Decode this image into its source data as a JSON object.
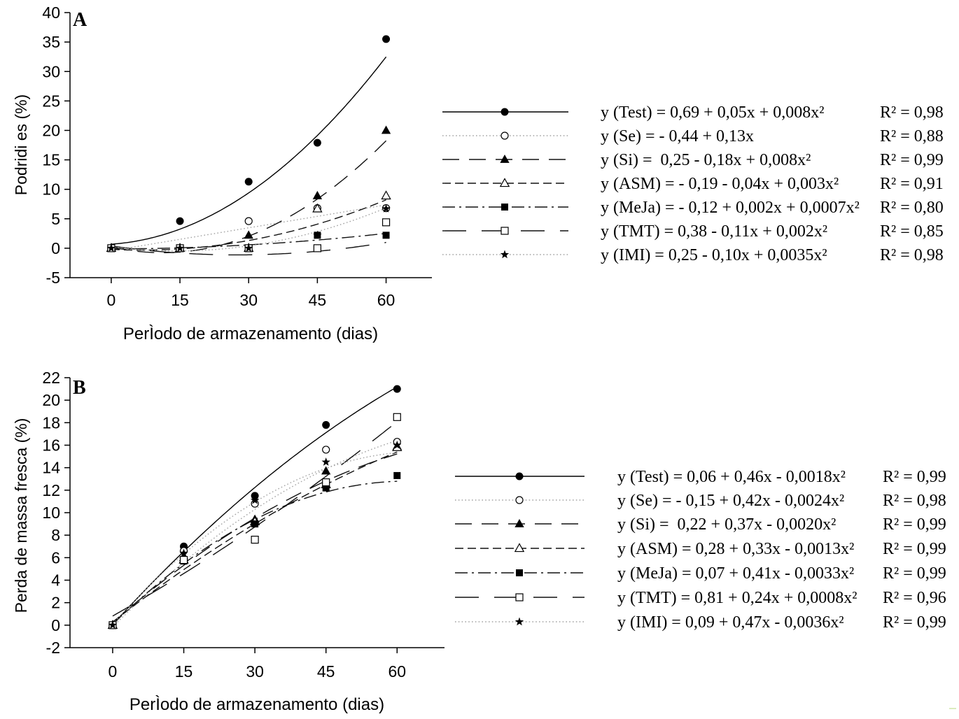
{
  "chart_data": [
    {
      "panel_label": "A",
      "type": "scatter",
      "xlabel": "PerÌodo de armazenamento (dias)",
      "ylabel": "Podridi es (%)",
      "x": [
        0,
        15,
        30,
        45,
        60
      ],
      "xticks": [
        0,
        15,
        30,
        45,
        60
      ],
      "yticks": [
        -5,
        0,
        5,
        10,
        15,
        20,
        25,
        30,
        35,
        40
      ],
      "xlim": [
        -9,
        70
      ],
      "ylim": [
        -5,
        40
      ],
      "grid": false,
      "legend_position": "right",
      "series": [
        {
          "marker": "filled-circle",
          "values": [
            0,
            4.6,
            11.3,
            17.9,
            35.5
          ],
          "coef": [
            0.69,
            0.05,
            0.008
          ],
          "equation": "y (Test) = 0,69 + 0,05x + 0,008x²",
          "r2": "R² = 0,98"
        },
        {
          "marker": "open-circle",
          "values": [
            0,
            0,
            4.6,
            6.8,
            6.8
          ],
          "coef": [
            -0.44,
            0.13,
            0
          ],
          "equation": "y (Se) = - 0,44 + 0,13x",
          "r2": "R² = 0,88"
        },
        {
          "marker": "filled-triangle",
          "values": [
            0,
            0,
            2.2,
            8.9,
            20.0
          ],
          "coef": [
            0.25,
            -0.18,
            0.008
          ],
          "equation": "y (Si) =  0,25 - 0,18x + 0,008x²",
          "r2": "R² = 0,99"
        },
        {
          "marker": "open-triangle",
          "values": [
            0,
            0,
            0,
            6.7,
            8.9
          ],
          "coef": [
            -0.19,
            -0.04,
            0.003
          ],
          "equation": "y (ASM) = - 0,19 - 0,04x + 0,003x²",
          "r2": "R² = 0,91"
        },
        {
          "marker": "filled-square",
          "values": [
            0,
            0,
            0,
            2.2,
            2.2
          ],
          "coef": [
            -0.12,
            0.002,
            0.0007
          ],
          "equation": "y (MeJa) = - 0,12 + 0,002x + 0,0007x²",
          "r2": "R² = 0,80"
        },
        {
          "marker": "open-square",
          "values": [
            0,
            0,
            0,
            0,
            4.4
          ],
          "coef": [
            0.38,
            -0.11,
            0.002
          ],
          "equation": "y (TMT) = 0,38 - 0,11x + 0,002x²",
          "r2": "R² = 0,85"
        },
        {
          "marker": "star",
          "values": [
            0,
            0,
            0,
            2.2,
            6.7
          ],
          "coef": [
            0.25,
            -0.1,
            0.0035
          ],
          "equation": "y (IMI) = 0,25 - 0,10x + 0,0035x²",
          "r2": "R² = 0,98"
        }
      ]
    },
    {
      "panel_label": "B",
      "type": "scatter",
      "xlabel": "PerÌodo de armazenamento (dias)",
      "ylabel": "Perda de massa fresca (%)",
      "x": [
        0,
        15,
        30,
        45,
        60
      ],
      "xticks": [
        0,
        15,
        30,
        45,
        60
      ],
      "yticks": [
        -2,
        0,
        2,
        4,
        6,
        8,
        10,
        12,
        14,
        16,
        18,
        20,
        22
      ],
      "xlim": [
        -9,
        70
      ],
      "ylim": [
        -2,
        22
      ],
      "grid": false,
      "legend_position": "right",
      "series": [
        {
          "marker": "filled-circle",
          "values": [
            0,
            7.0,
            11.5,
            17.8,
            21.0
          ],
          "coef": [
            0.06,
            0.46,
            -0.0018
          ],
          "equation": "y (Test) = 0,06 + 0,46x - 0,0018x²",
          "r2": "R² = 0,99"
        },
        {
          "marker": "open-circle",
          "values": [
            0,
            6.6,
            10.8,
            15.6,
            16.3
          ],
          "coef": [
            -0.15,
            0.42,
            -0.0024
          ],
          "equation": "y (Se) = - 0,15 + 0,42x - 0,0024x²",
          "r2": "R² = 0,98"
        },
        {
          "marker": "filled-triangle",
          "values": [
            0,
            6.0,
            9.4,
            13.7,
            15.9
          ],
          "coef": [
            0.22,
            0.37,
            -0.002
          ],
          "equation": "y (Si) =  0,22 + 0,37x - 0,0020x²",
          "r2": "R² = 0,99"
        },
        {
          "marker": "open-triangle",
          "values": [
            0,
            5.8,
            9.2,
            12.5,
            15.8
          ],
          "coef": [
            0.28,
            0.33,
            -0.0013
          ],
          "equation": "y (ASM) = 0,28 + 0,33x - 0,0013x²",
          "r2": "R² = 0,99"
        },
        {
          "marker": "filled-square",
          "values": [
            0,
            5.7,
            9.0,
            12.2,
            13.3
          ],
          "coef": [
            0.07,
            0.41,
            -0.0033
          ],
          "equation": "y (MeJa) = 0,07 + 0,41x - 0,0033x²",
          "r2": "R² = 0,99"
        },
        {
          "marker": "open-square",
          "values": [
            0,
            5.8,
            7.6,
            12.7,
            18.5
          ],
          "coef": [
            0.81,
            0.24,
            0.0008
          ],
          "equation": "y (TMT) = 0,81 + 0,24x + 0,0008x²",
          "r2": "R² = 0,96"
        },
        {
          "marker": "star",
          "values": [
            0,
            6.4,
            11.1,
            14.5,
            16.0
          ],
          "coef": [
            0.09,
            0.47,
            -0.0036
          ],
          "equation": "y (IMI) = 0,09 + 0,47x - 0,0036x²",
          "r2": "R² = 0,99"
        }
      ]
    }
  ]
}
